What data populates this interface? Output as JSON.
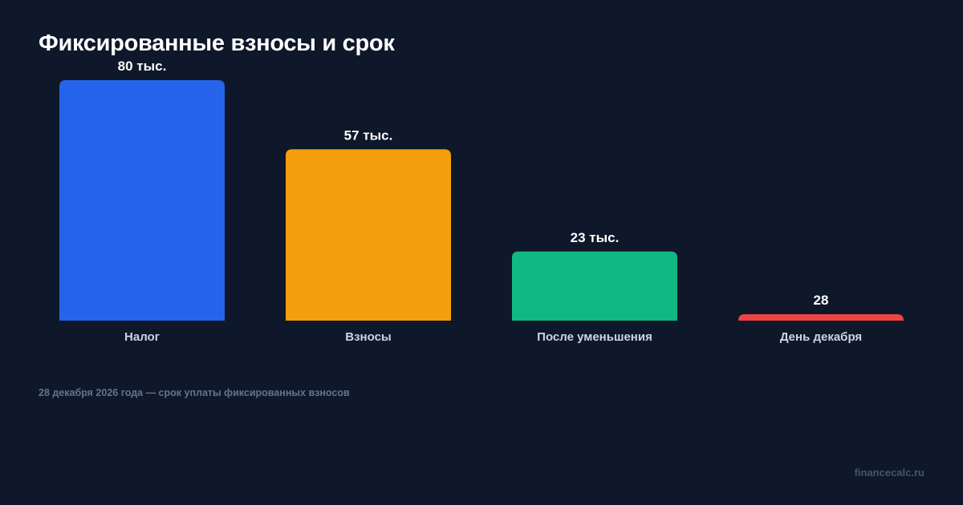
{
  "title": "Фиксированные взносы и срок",
  "footnote": "28 декабря 2026 года — срок уплаты фиксированных взносов",
  "watermark": "financecalc.ru",
  "chart_data": {
    "type": "bar",
    "title": "Фиксированные взносы и срок",
    "categories": [
      "Налог",
      "Взносы",
      "После уменьшения",
      "День декабря"
    ],
    "values": [
      80000,
      57000,
      23000,
      28
    ],
    "value_labels": [
      "80 тыс.",
      "57 тыс.",
      "23 тыс.",
      "28"
    ],
    "colors": [
      "#2563eb",
      "#f59e0b",
      "#10b981",
      "#ef4444"
    ],
    "ylim": [
      0,
      80000
    ],
    "grid": false,
    "legend": "none"
  }
}
